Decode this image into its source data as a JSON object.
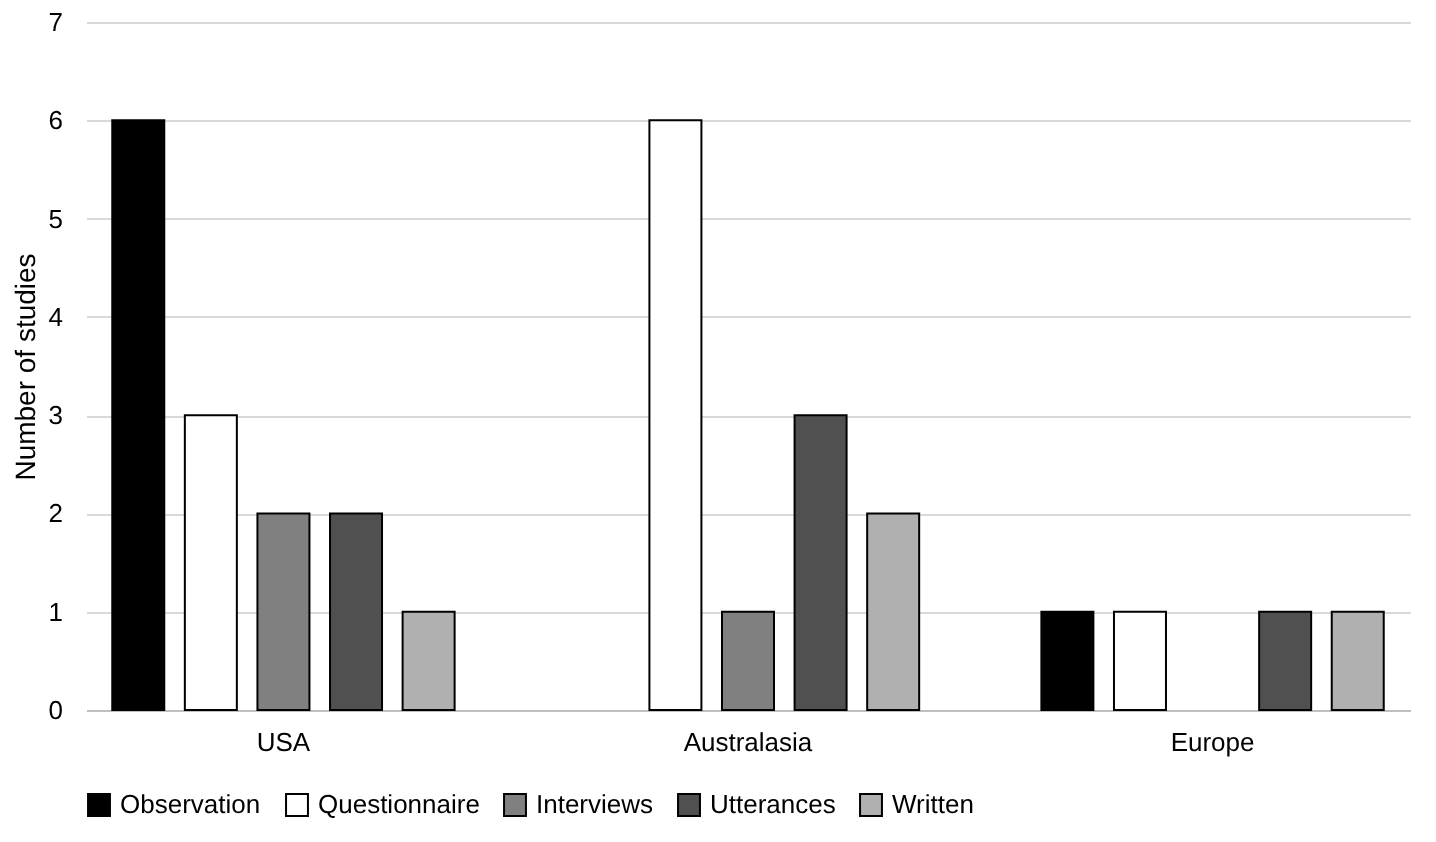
{
  "chart_data": {
    "type": "bar",
    "ylabel": "Number of studies",
    "categories": [
      "USA",
      "Australasia",
      "Europe"
    ],
    "series": [
      {
        "name": "Observation",
        "color": "#000000",
        "values": [
          6,
          0,
          1
        ]
      },
      {
        "name": "Questionnaire",
        "color": "#ffffff",
        "values": [
          3,
          6,
          1
        ]
      },
      {
        "name": "Interviews",
        "color": "#808080",
        "values": [
          2,
          1,
          0
        ]
      },
      {
        "name": "Utterances",
        "color": "#505050",
        "values": [
          2,
          3,
          1
        ]
      },
      {
        "name": "Written",
        "color": "#b0b0b0",
        "values": [
          1,
          2,
          1
        ]
      }
    ],
    "ylim": [
      0,
      7
    ],
    "yticks": [
      0,
      1,
      2,
      3,
      4,
      5,
      6,
      7
    ],
    "grid": "y",
    "legend": "bottom"
  }
}
